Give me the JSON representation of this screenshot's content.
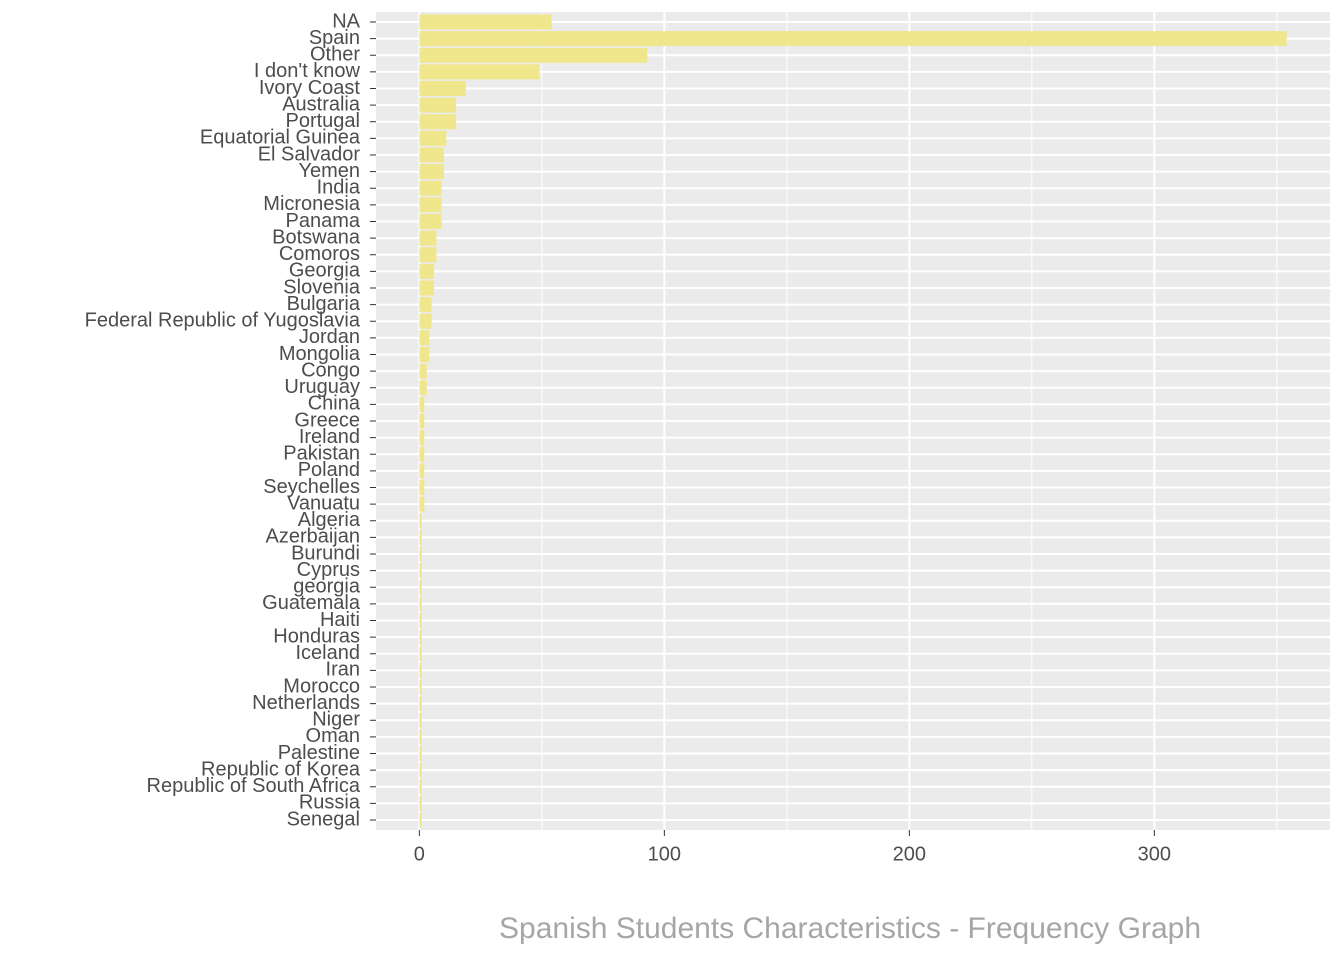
{
  "chart_data": {
    "type": "bar",
    "orientation": "horizontal",
    "title": "Spanish Students Characteristics - Frequency Graph",
    "categories": [
      "NA",
      "Spain",
      "Other",
      "I don't know",
      "Ivory Coast",
      "Australia",
      "Portugal",
      "Equatorial Guinea",
      "El Salvador",
      "Yemen",
      "India",
      "Micronesia",
      "Panama",
      "Botswana",
      "Comoros",
      "Georgia",
      "Slovenia",
      "Bulgaria",
      "Federal Republic of Yugoslavia",
      "Jordan",
      "Mongolia",
      "Congo",
      "Uruguay",
      "China",
      "Greece",
      "Ireland",
      "Pakistan",
      "Poland",
      "Seychelles",
      "Vanuatu",
      "Algeria",
      "Azerbaijan",
      "Burundi",
      "Cyprus",
      "georgia",
      "Guatemala",
      "Haiti",
      "Honduras",
      "Iceland",
      "Iran",
      "Morocco",
      "Netherlands",
      "Niger",
      "Oman",
      "Palestine",
      "Republic of Korea",
      "Republic of South Africa",
      "Russia",
      "Senegal"
    ],
    "values": [
      54,
      354,
      93,
      49,
      19,
      15,
      15,
      11,
      10,
      10,
      9,
      9,
      9,
      7,
      7,
      6,
      6,
      5,
      5,
      4,
      4,
      3,
      3,
      2,
      2,
      2,
      2,
      2,
      2,
      2,
      1,
      1,
      1,
      1,
      1,
      1,
      1,
      1,
      1,
      1,
      1,
      1,
      1,
      1,
      1,
      1,
      1,
      1,
      1
    ],
    "color": "#f0e68c",
    "xlim": [
      -17.7,
      371.7
    ],
    "xticks": [
      0,
      100,
      200,
      300
    ],
    "minor_xticks": [
      50,
      150,
      250,
      350
    ],
    "grid": true
  }
}
